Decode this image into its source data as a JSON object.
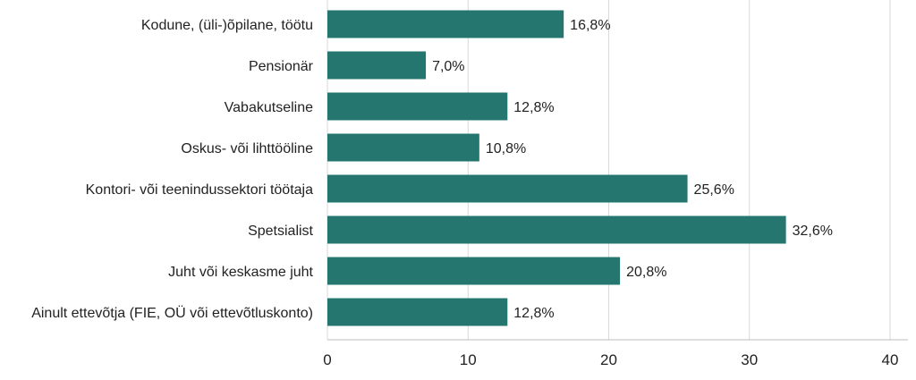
{
  "chart_data": {
    "type": "bar",
    "orientation": "horizontal",
    "categories": [
      "Kodune, (üli-)õpilane, töötu",
      "Pensionär",
      "Vabakutseline",
      "Oskus- või lihttööline",
      "Kontori- või teenindussektori töötaja",
      "Spetsialist",
      "Juht või keskasme juht",
      "Ainult ettevõtja (FIE, OÜ või ettevõtluskonto)"
    ],
    "values": [
      16.8,
      7.0,
      12.8,
      10.8,
      25.6,
      32.6,
      20.8,
      12.8
    ],
    "value_labels": [
      "16,8%",
      "7,0%",
      "12,8%",
      "10,8%",
      "25,6%",
      "32,6%",
      "20,8%",
      "12,8%"
    ],
    "xlim": [
      0,
      40
    ],
    "xticks": [
      0,
      10,
      20,
      30,
      40
    ],
    "xtick_labels": [
      "0",
      "10",
      "20",
      "30",
      "40"
    ],
    "grid": true,
    "legend": "none",
    "colors": {
      "bar": "#267670"
    }
  }
}
